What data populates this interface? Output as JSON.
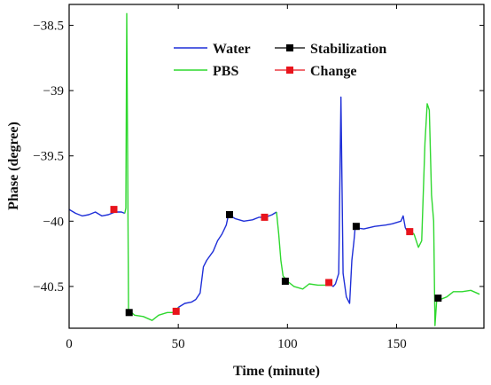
{
  "chart_data": {
    "type": "line",
    "xlabel": "Time (minute)",
    "ylabel": "Phase (degree)",
    "xlim": [
      0,
      190
    ],
    "ylim": [
      -40.82,
      -38.34
    ],
    "xticks": [
      0,
      50,
      100,
      150
    ],
    "xtick_labels": [
      "0",
      "50",
      "100",
      "150"
    ],
    "yticks": [
      -38.5,
      -39,
      -39.5,
      -40,
      -40.5
    ],
    "ytick_labels": [
      "−38.5",
      "−39",
      "−39.5",
      "−40",
      "−40.5"
    ],
    "grid": false,
    "legend_position": "top-right",
    "colors": {
      "water": "#1f2fd8",
      "pbs": "#2fd82f",
      "stabilization": "#000000",
      "change": "#e8141c"
    },
    "series": [
      {
        "name": "Water",
        "segments": [
          [
            [
              0,
              -39.91
            ],
            [
              3,
              -39.94
            ],
            [
              6,
              -39.96
            ],
            [
              9,
              -39.95
            ],
            [
              12,
              -39.93
            ],
            [
              15,
              -39.96
            ],
            [
              18,
              -39.95
            ],
            [
              21,
              -39.93
            ],
            [
              24,
              -39.93
            ],
            [
              25.5,
              -39.94
            ]
          ],
          [
            [
              50,
              -40.66
            ],
            [
              53,
              -40.63
            ],
            [
              56,
              -40.62
            ],
            [
              58,
              -40.6
            ],
            [
              60,
              -40.55
            ],
            [
              61.5,
              -40.35
            ],
            [
              63,
              -40.3
            ],
            [
              66,
              -40.23
            ],
            [
              68,
              -40.15
            ],
            [
              70,
              -40.1
            ],
            [
              72,
              -40.03
            ],
            [
              73,
              -39.95
            ],
            [
              76,
              -39.98
            ],
            [
              80,
              -40.0
            ],
            [
              84,
              -39.99
            ],
            [
              87,
              -39.97
            ],
            [
              90,
              -39.97
            ],
            [
              93,
              -39.95
            ],
            [
              95,
              -39.93
            ]
          ],
          [
            [
              120,
              -40.49
            ],
            [
              121,
              -40.5
            ],
            [
              122,
              -40.48
            ],
            [
              123.5,
              -40.4
            ],
            [
              124.5,
              -39.05
            ],
            [
              125.5,
              -40.4
            ],
            [
              127,
              -40.58
            ],
            [
              128.5,
              -40.63
            ],
            [
              129.5,
              -40.3
            ],
            [
              130.5,
              -40.15
            ],
            [
              131,
              -40.05
            ],
            [
              135,
              -40.06
            ],
            [
              140,
              -40.04
            ],
            [
              145,
              -40.03
            ],
            [
              148,
              -40.02
            ],
            [
              150,
              -40.01
            ],
            [
              152,
              -40.0
            ],
            [
              153,
              -39.96
            ],
            [
              154,
              -40.05
            ],
            [
              155,
              -40.08
            ]
          ]
        ]
      },
      {
        "name": "PBS",
        "segments": [
          [
            [
              25.5,
              -39.94
            ],
            [
              26,
              -39.9
            ],
            [
              26.4,
              -38.41
            ],
            [
              26.8,
              -39.5
            ],
            [
              27.2,
              -40.68
            ],
            [
              30,
              -40.72
            ],
            [
              34,
              -40.73
            ],
            [
              38,
              -40.76
            ],
            [
              41,
              -40.72
            ],
            [
              45,
              -40.7
            ],
            [
              48,
              -40.7
            ],
            [
              50,
              -40.66
            ]
          ],
          [
            [
              95,
              -39.93
            ],
            [
              96,
              -40.1
            ],
            [
              97,
              -40.3
            ],
            [
              98,
              -40.42
            ],
            [
              100,
              -40.46
            ],
            [
              103,
              -40.5
            ],
            [
              107,
              -40.52
            ],
            [
              110,
              -40.48
            ],
            [
              114,
              -40.49
            ],
            [
              117,
              -40.49
            ],
            [
              120,
              -40.49
            ]
          ],
          [
            [
              155,
              -40.08
            ],
            [
              156,
              -40.07
            ],
            [
              158,
              -40.1
            ],
            [
              160,
              -40.2
            ],
            [
              161.5,
              -40.15
            ],
            [
              163,
              -39.4
            ],
            [
              164,
              -39.1
            ],
            [
              165,
              -39.15
            ],
            [
              166,
              -39.8
            ],
            [
              167,
              -40.0
            ],
            [
              167.6,
              -40.8
            ],
            [
              168.5,
              -40.58
            ],
            [
              170,
              -40.6
            ],
            [
              173,
              -40.58
            ],
            [
              176,
              -40.54
            ],
            [
              180,
              -40.54
            ],
            [
              184,
              -40.53
            ],
            [
              188,
              -40.56
            ]
          ]
        ]
      }
    ],
    "markers": [
      {
        "name": "Stabilization",
        "points": [
          [
            27.5,
            -40.7
          ],
          [
            73.5,
            -39.95
          ],
          [
            99,
            -40.46
          ],
          [
            131.5,
            -40.04
          ],
          [
            169,
            -40.59
          ]
        ]
      },
      {
        "name": "Change",
        "points": [
          [
            20.5,
            -39.91
          ],
          [
            49,
            -40.69
          ],
          [
            89.5,
            -39.97
          ],
          [
            119,
            -40.47
          ],
          [
            156,
            -40.08
          ]
        ]
      }
    ]
  }
}
